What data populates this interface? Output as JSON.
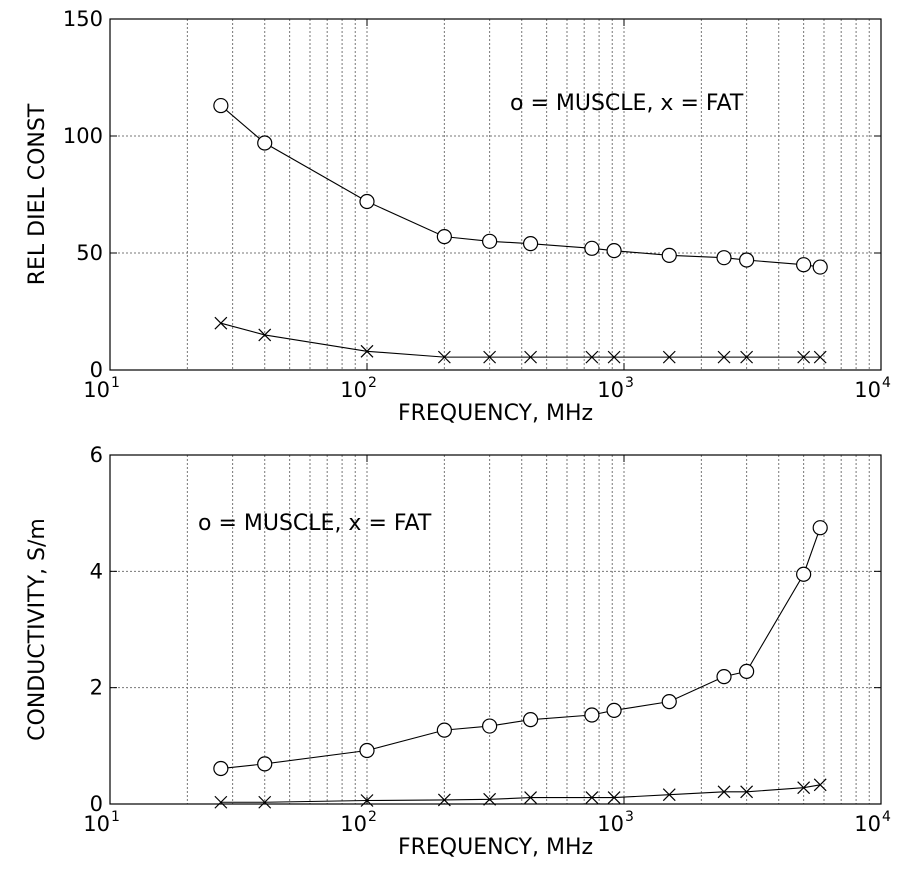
{
  "chart_data": [
    {
      "type": "line",
      "title": "",
      "xlabel": "FREQUENCY, MHz",
      "ylabel": "REL DIEL CONST",
      "xscale": "log",
      "xlim": [
        10,
        10000
      ],
      "ylim": [
        0,
        150
      ],
      "yticks": [
        0,
        50,
        100,
        150
      ],
      "xticks": [
        {
          "base": "10",
          "exp": "1",
          "value": 10
        },
        {
          "base": "10",
          "exp": "2",
          "value": 100
        },
        {
          "base": "10",
          "exp": "3",
          "value": 1000
        },
        {
          "base": "10",
          "exp": "4",
          "value": 10000
        }
      ],
      "grid": true,
      "legend_text": "o = MUSCLE, x = FAT",
      "series": [
        {
          "marker": "o",
          "x": [
            27,
            40,
            100,
            200,
            300,
            433,
            750,
            915,
            1500,
            2450,
            3000,
            5000,
            5800
          ],
          "y": [
            113,
            97,
            72,
            57,
            55,
            54,
            52,
            51,
            49,
            48,
            47,
            45,
            44
          ]
        },
        {
          "marker": "x",
          "x": [
            27,
            40,
            100,
            200,
            300,
            433,
            750,
            915,
            1500,
            2450,
            3000,
            5000,
            5800
          ],
          "y": [
            20,
            15,
            8,
            5.5,
            5.5,
            5.5,
            5.5,
            5.5,
            5.5,
            5.5,
            5.5,
            5.5,
            5.5
          ]
        }
      ]
    },
    {
      "type": "line",
      "title": "",
      "xlabel": "FREQUENCY, MHz",
      "ylabel": "CONDUCTIVITY, S/m",
      "xscale": "log",
      "xlim": [
        10,
        10000
      ],
      "ylim": [
        0,
        6
      ],
      "yticks": [
        0,
        2,
        4,
        6
      ],
      "xticks": [
        {
          "base": "10",
          "exp": "1",
          "value": 10
        },
        {
          "base": "10",
          "exp": "2",
          "value": 100
        },
        {
          "base": "10",
          "exp": "3",
          "value": 1000
        },
        {
          "base": "10",
          "exp": "4",
          "value": 10000
        }
      ],
      "grid": true,
      "legend_text": "o = MUSCLE, x = FAT",
      "series": [
        {
          "marker": "o",
          "x": [
            27,
            40,
            100,
            200,
            300,
            433,
            750,
            915,
            1500,
            2450,
            3000,
            5000,
            5800
          ],
          "y": [
            0.61,
            0.69,
            0.92,
            1.27,
            1.34,
            1.45,
            1.53,
            1.61,
            1.76,
            2.19,
            2.28,
            3.95,
            4.75
          ]
        },
        {
          "marker": "x",
          "x": [
            27,
            40,
            100,
            200,
            300,
            433,
            750,
            915,
            1500,
            2450,
            3000,
            5000,
            5800
          ],
          "y": [
            0.03,
            0.03,
            0.06,
            0.07,
            0.08,
            0.11,
            0.11,
            0.11,
            0.16,
            0.21,
            0.21,
            0.28,
            0.33
          ]
        }
      ]
    }
  ]
}
